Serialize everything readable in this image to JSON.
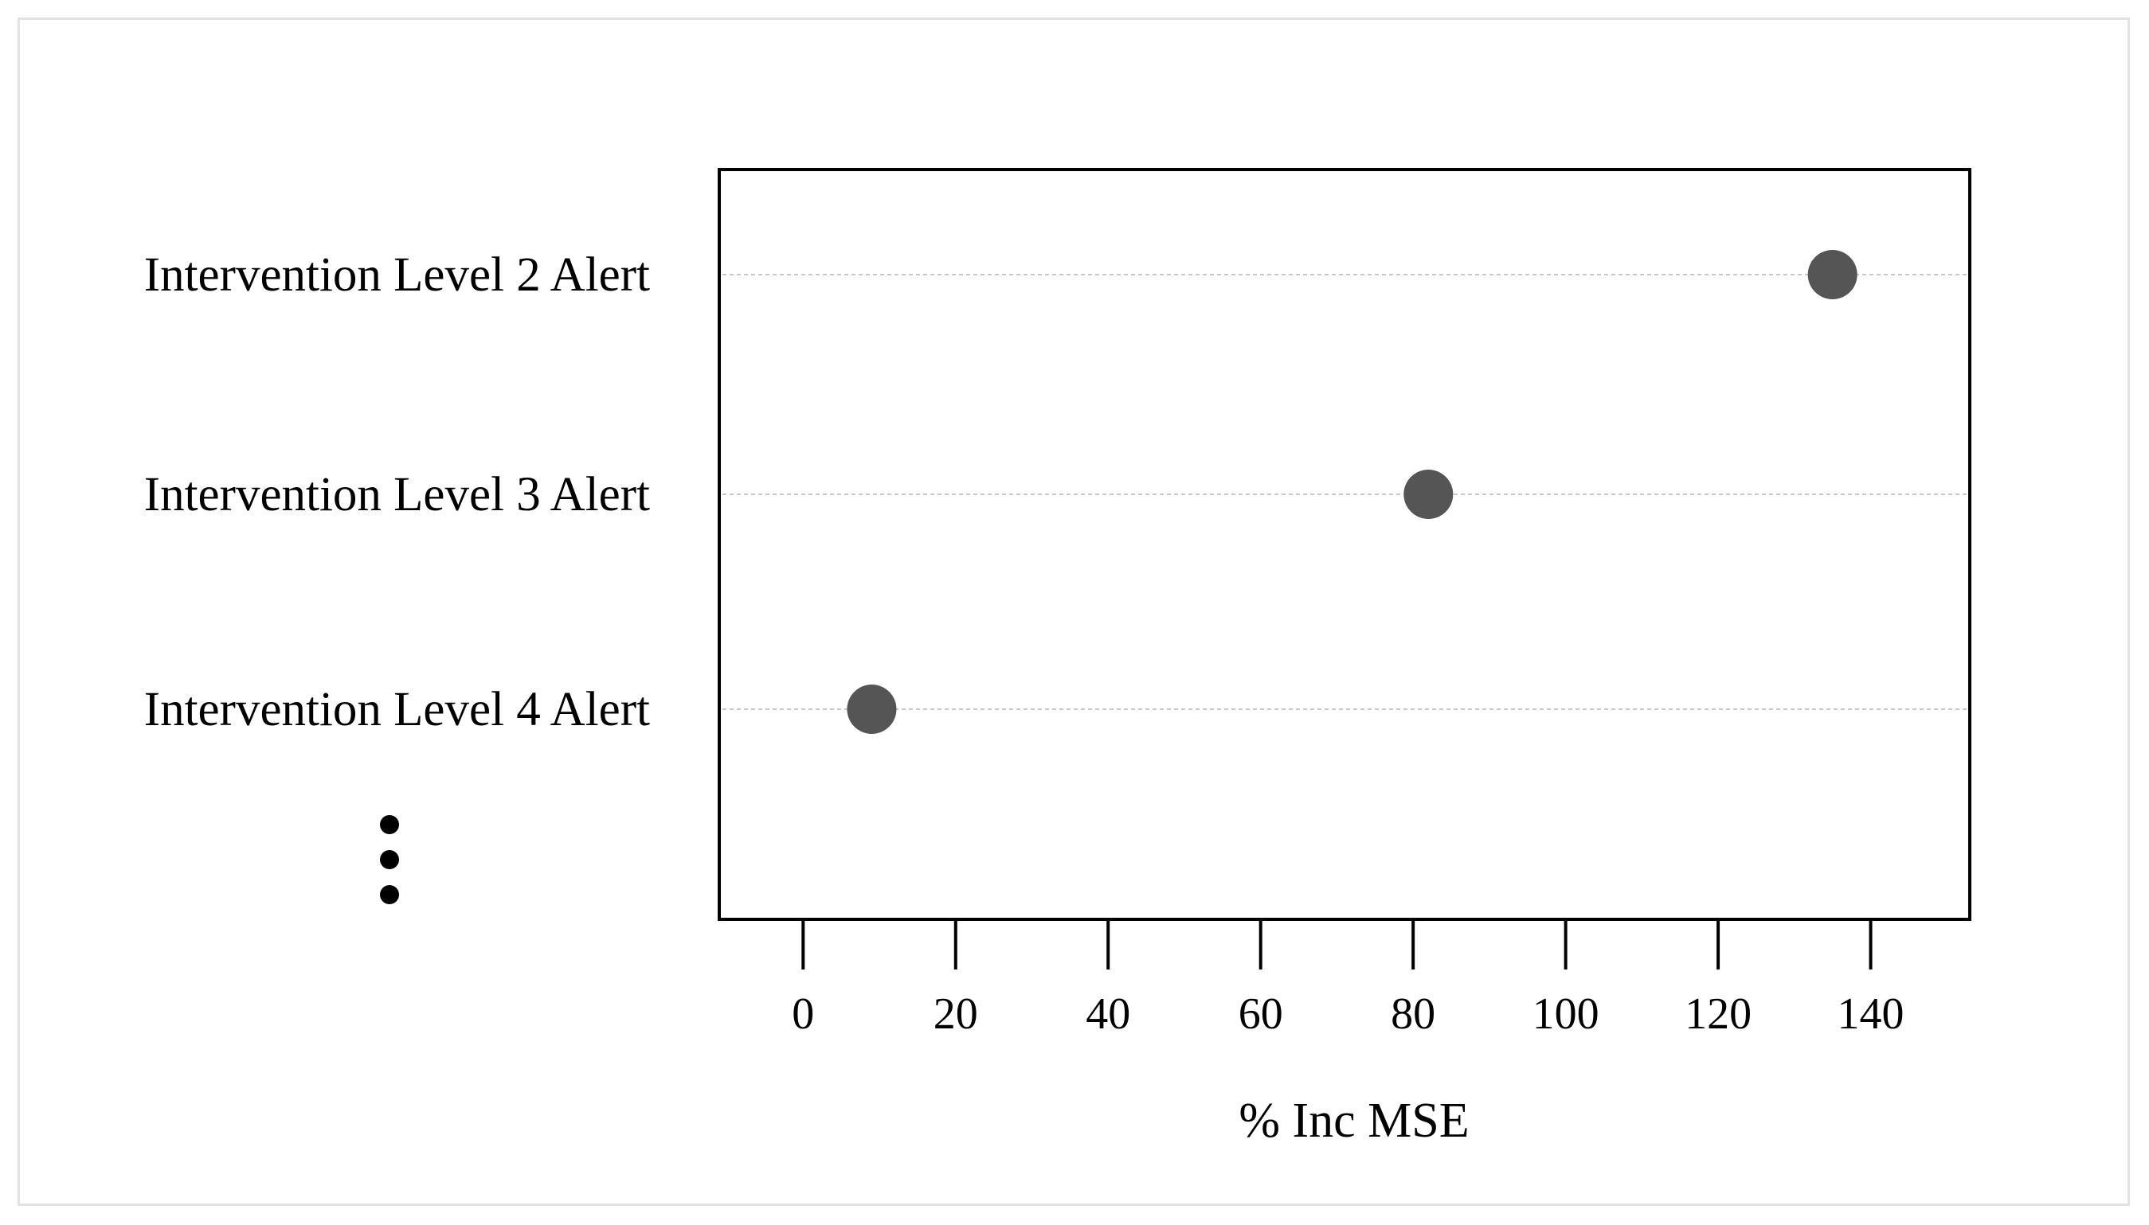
{
  "chart_data": {
    "type": "scatter",
    "subtype": "dot-plot",
    "title": "",
    "xlabel": "% Inc MSE",
    "ylabel": "",
    "xlim": [
      -11,
      153
    ],
    "xticks": [
      0,
      20,
      40,
      60,
      80,
      100,
      120,
      140
    ],
    "grid": "dashed horizontal lines at each category",
    "categories": [
      "Intervention Level 2 Alert",
      "Intervention Level 3 Alert",
      "Intervention Level 4 Alert"
    ],
    "values": [
      135,
      82,
      9
    ],
    "continuation": "vertical ellipsis below the last category",
    "colors": {
      "point": "#555555",
      "grid": "#c8c8c8",
      "axis": "#000000",
      "frame": "#e3e3e3"
    }
  }
}
